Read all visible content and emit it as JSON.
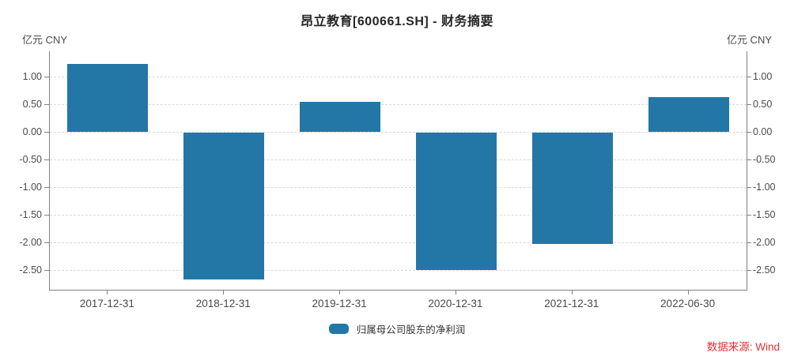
{
  "title": "昂立教育[600661.SH] - 财务摘要",
  "unit_left": "亿元 CNY",
  "unit_right": "亿元 CNY",
  "legend": {
    "label": "归属母公司股东的净利润"
  },
  "source": "数据来源: Wind",
  "colors": {
    "bar": "#2377A6",
    "grid": "#d8d8d8",
    "axis": "#808080",
    "tick_text": "#4a4a4a",
    "title_text": "#262626",
    "source_text": "#e13232"
  },
  "chart_data": {
    "type": "bar",
    "title": "昂立教育[600661.SH] - 财务摘要",
    "categories": [
      "2017-12-31",
      "2018-12-31",
      "2019-12-31",
      "2020-12-31",
      "2021-12-31",
      "2022-06-30"
    ],
    "series": [
      {
        "name": "归属母公司股东的净利润",
        "values": [
          1.23,
          -2.66,
          0.54,
          -2.48,
          -2.02,
          0.63
        ]
      }
    ],
    "xlabel": "",
    "ylabel": "亿元 CNY",
    "ylabel_right": "亿元 CNY",
    "ylim": [
      -2.86,
      1.46
    ],
    "ytick_labels": [
      "1.00",
      "0.50",
      "0.00",
      "-0.50",
      "-1.00",
      "-1.50",
      "-2.00",
      "-2.50"
    ],
    "grid": "dashed-horizontal",
    "legend_position": "bottom"
  }
}
